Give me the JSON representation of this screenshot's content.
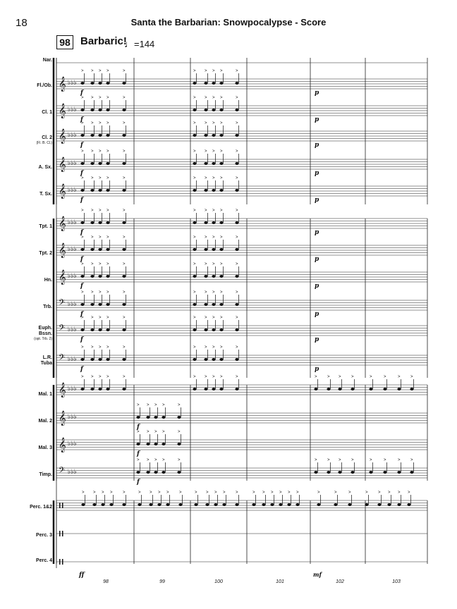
{
  "header": {
    "page_number": "18",
    "title": "Santa the Barbarian: Snowpocalypse - Score"
  },
  "tempo": {
    "rehearsal_mark": "98",
    "text": "Barbaric!",
    "note_glyph": "♩",
    "bpm_text": "=144"
  },
  "instruments": [
    {
      "label": "Nar.",
      "sub": ""
    },
    {
      "label": "Fl./Ob.",
      "sub": ""
    },
    {
      "label": "Cl. 1",
      "sub": ""
    },
    {
      "label": "Cl. 2",
      "sub": "(Fl. B. Cl.)"
    },
    {
      "label": "A. Sx.",
      "sub": ""
    },
    {
      "label": "T. Sx.",
      "sub": ""
    },
    {
      "label": "Tpt. 1",
      "sub": ""
    },
    {
      "label": "Tpt. 2",
      "sub": ""
    },
    {
      "label": "Hn.",
      "sub": ""
    },
    {
      "label": "Trb.",
      "sub": ""
    },
    {
      "label": "Euph.",
      "sub": ""
    },
    {
      "label": "Bssn.",
      "sub": "(opt. Trb. 2)"
    },
    {
      "label": "L.R.",
      "sub": ""
    },
    {
      "label": "Tuba",
      "sub": ""
    },
    {
      "label": "Mal. 1",
      "sub": ""
    },
    {
      "label": "Mal. 2",
      "sub": ""
    },
    {
      "label": "Mal. 3",
      "sub": ""
    },
    {
      "label": "Timp.",
      "sub": ""
    },
    {
      "label": "Perc. 1&2",
      "sub": ""
    },
    {
      "label": "Perc. 3",
      "sub": ""
    },
    {
      "label": "Perc. 4",
      "sub": ""
    }
  ],
  "measure_numbers": [
    "98",
    "99",
    "100",
    "101",
    "102",
    "103"
  ],
  "dynamics": {
    "forte": "f",
    "piano": "p",
    "fortissimo": "ff",
    "mezzo_forte": "mf"
  }
}
